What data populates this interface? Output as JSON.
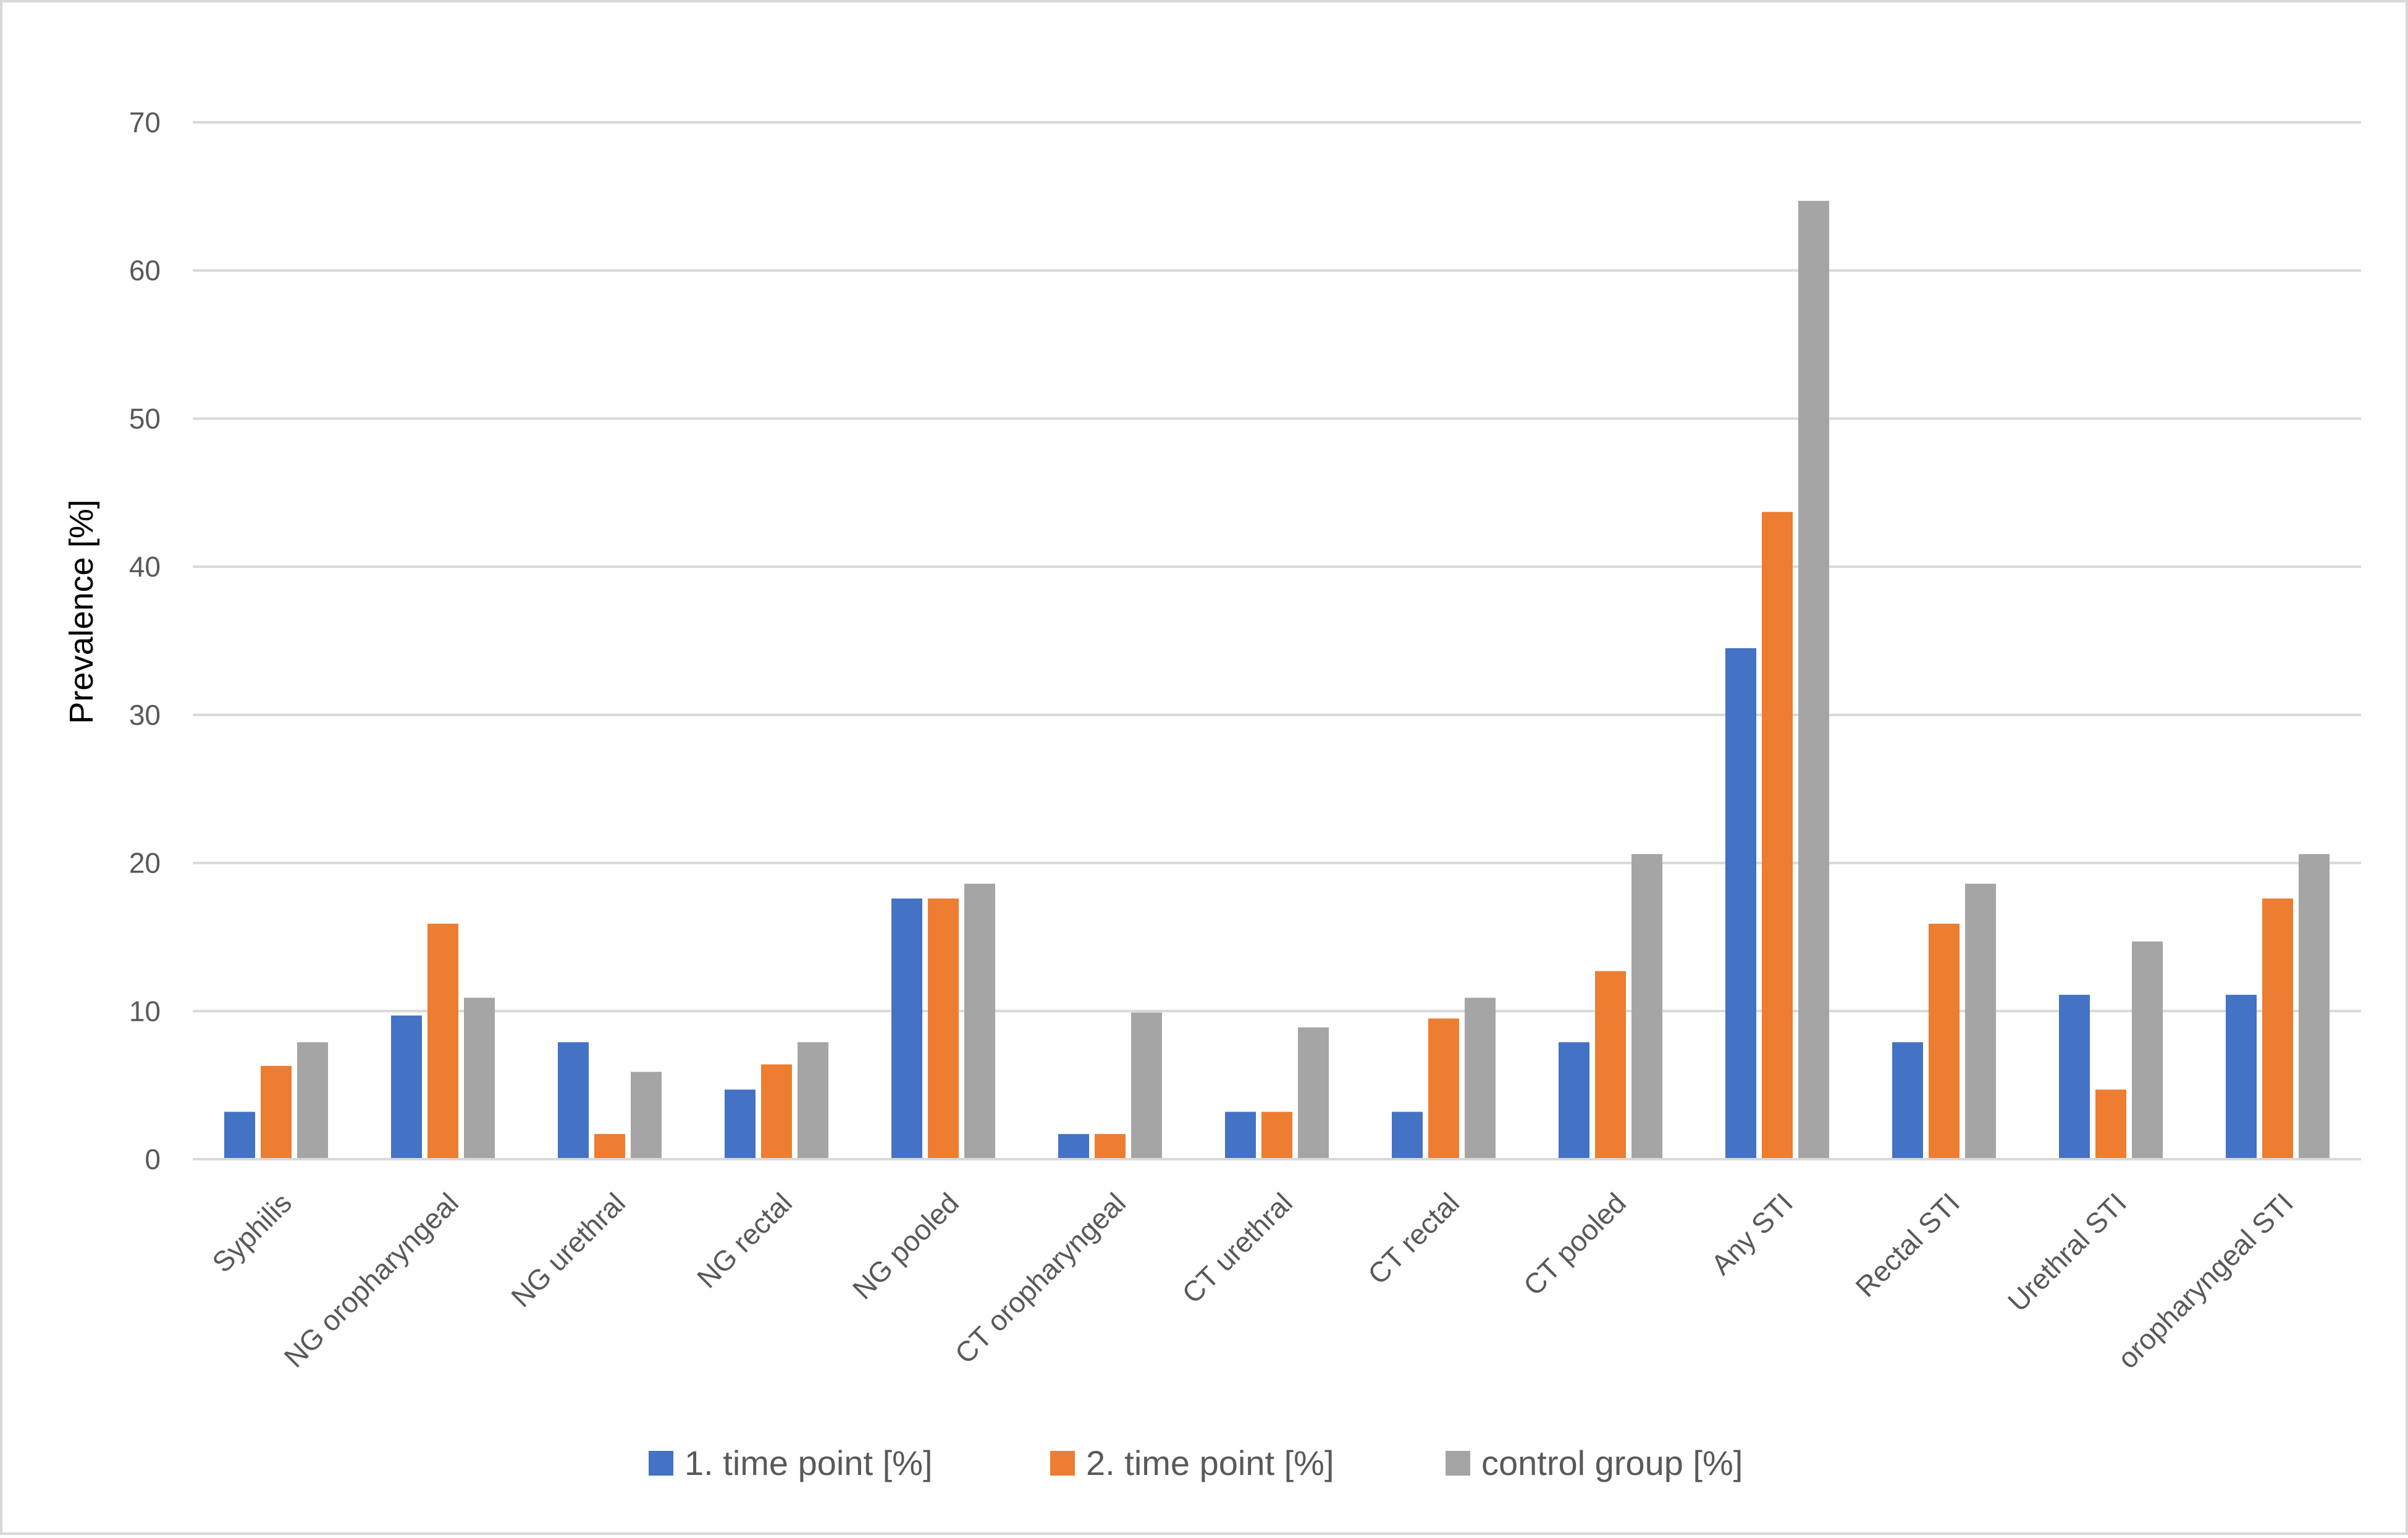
{
  "chart_data": {
    "type": "bar",
    "title": "",
    "xlabel": "",
    "ylabel": "Prevalence [%]",
    "ylim": [
      0,
      70
    ],
    "yticks": [
      0,
      10,
      20,
      30,
      40,
      50,
      60,
      70
    ],
    "grid": true,
    "legend_position": "bottom",
    "categories": [
      "Syphilis",
      "NG oropharyngeal",
      "NG urethral",
      "NG rectal",
      "NG pooled",
      "CT oropharyngeal",
      "CT urethral",
      "CT rectal",
      "CT pooled",
      "Any STI",
      "Rectal STI",
      "Urethral STI",
      "oropharyngeal STI"
    ],
    "series": [
      {
        "name": "1. time point [%]",
        "color": "#4472C4",
        "values": [
          3.2,
          9.7,
          7.9,
          4.7,
          17.6,
          1.7,
          3.2,
          3.2,
          7.9,
          34.5,
          7.9,
          11.1,
          11.1
        ]
      },
      {
        "name": "2. time point [%]",
        "color": "#ED7D31",
        "values": [
          6.3,
          15.9,
          1.7,
          6.4,
          17.6,
          1.7,
          3.2,
          9.5,
          12.7,
          43.7,
          15.9,
          4.7,
          17.6
        ]
      },
      {
        "name": "control group [%]",
        "color": "#A5A5A5",
        "values": [
          7.9,
          10.9,
          5.9,
          7.9,
          18.6,
          9.9,
          8.9,
          10.9,
          20.6,
          64.7,
          18.6,
          14.7,
          20.6
        ]
      }
    ]
  }
}
